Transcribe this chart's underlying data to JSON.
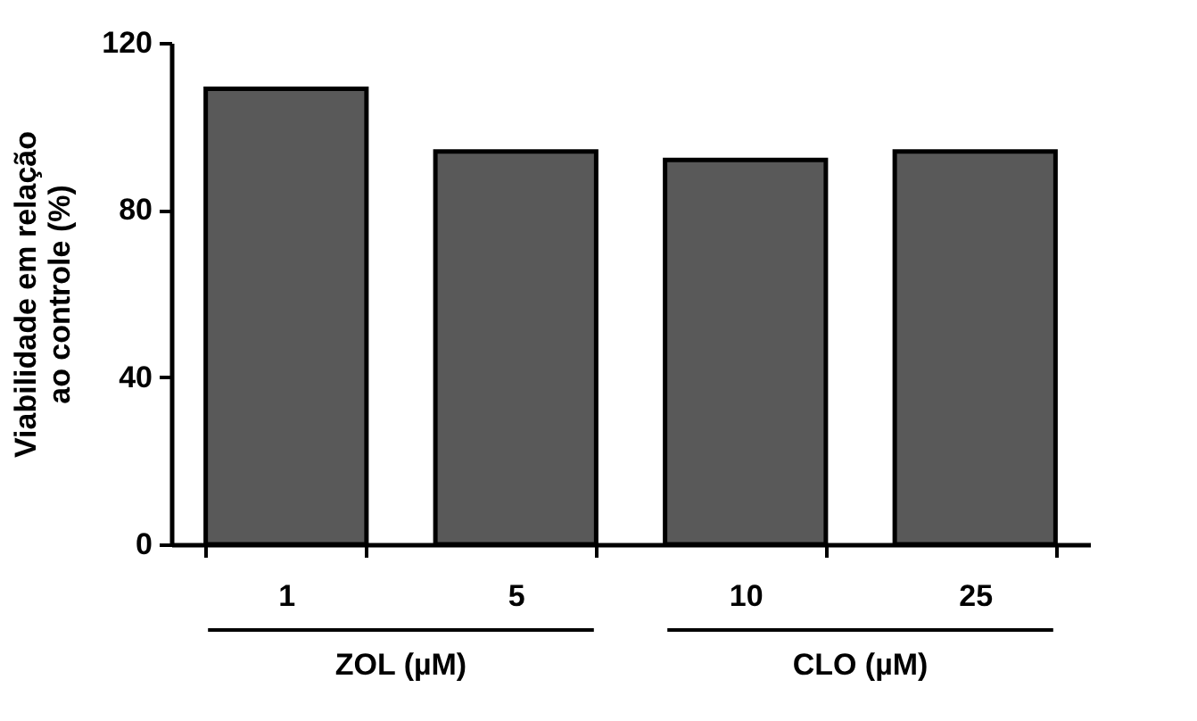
{
  "chart_data": {
    "type": "bar",
    "ylabel": "Viabilidade em relação\nao controle  (%)",
    "categories": [
      "1",
      "5",
      "10",
      "25"
    ],
    "values": [
      109,
      94,
      92,
      94
    ],
    "color": "#595959",
    "ylim": [
      0,
      120
    ],
    "yticks": [
      0,
      40,
      80,
      120
    ],
    "grid": false,
    "annotations": [
      "ZOL (µM)",
      "CLO (µM)"
    ]
  }
}
